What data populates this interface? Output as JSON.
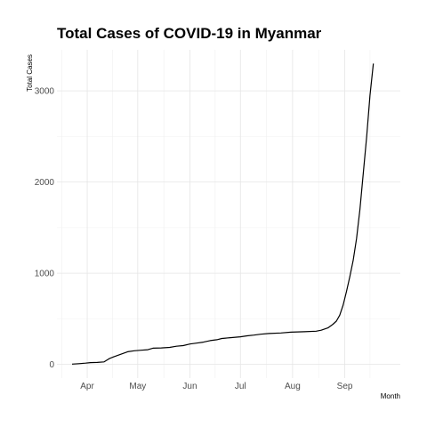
{
  "chart_data": {
    "type": "line",
    "title": "Total Cases of COVID-19 in Myanmar",
    "xlabel": "Month",
    "ylabel": "Total Cases",
    "x_ticks": [
      "Apr",
      "May",
      "Jun",
      "Jul",
      "Aug",
      "Sep"
    ],
    "y_ticks": [
      0,
      1000,
      2000,
      3000
    ],
    "xlim": [
      "2020-03-14",
      "2020-10-04"
    ],
    "ylim": [
      -150,
      3450
    ],
    "grid": true,
    "legend": "none",
    "series": [
      {
        "color": "#000000",
        "points": [
          [
            "2020-03-23",
            3
          ],
          [
            "2020-03-27",
            8
          ],
          [
            "2020-03-31",
            14
          ],
          [
            "2020-04-03",
            20
          ],
          [
            "2020-04-07",
            22
          ],
          [
            "2020-04-11",
            28
          ],
          [
            "2020-04-14",
            63
          ],
          [
            "2020-04-17",
            85
          ],
          [
            "2020-04-21",
            111
          ],
          [
            "2020-04-25",
            139
          ],
          [
            "2020-04-29",
            150
          ],
          [
            "2020-05-03",
            155
          ],
          [
            "2020-05-07",
            161
          ],
          [
            "2020-05-10",
            178
          ],
          [
            "2020-05-15",
            181
          ],
          [
            "2020-05-20",
            187
          ],
          [
            "2020-05-24",
            199
          ],
          [
            "2020-05-28",
            206
          ],
          [
            "2020-06-01",
            224
          ],
          [
            "2020-06-05",
            233
          ],
          [
            "2020-06-09",
            244
          ],
          [
            "2020-06-13",
            261
          ],
          [
            "2020-06-17",
            270
          ],
          [
            "2020-06-20",
            284
          ],
          [
            "2020-06-25",
            293
          ],
          [
            "2020-07-01",
            303
          ],
          [
            "2020-07-05",
            313
          ],
          [
            "2020-07-09",
            321
          ],
          [
            "2020-07-13",
            331
          ],
          [
            "2020-07-18",
            339
          ],
          [
            "2020-07-25",
            345
          ],
          [
            "2020-07-31",
            353
          ],
          [
            "2020-08-08",
            358
          ],
          [
            "2020-08-15",
            364
          ],
          [
            "2020-08-18",
            375
          ],
          [
            "2020-08-22",
            400
          ],
          [
            "2020-08-25",
            440
          ],
          [
            "2020-08-27",
            474
          ],
          [
            "2020-08-29",
            540
          ],
          [
            "2020-08-31",
            650
          ],
          [
            "2020-09-02",
            800
          ],
          [
            "2020-09-04",
            960
          ],
          [
            "2020-09-06",
            1140
          ],
          [
            "2020-09-08",
            1380
          ],
          [
            "2020-09-10",
            1700
          ],
          [
            "2020-09-12",
            2100
          ],
          [
            "2020-09-14",
            2500
          ],
          [
            "2020-09-16",
            2950
          ],
          [
            "2020-09-18",
            3300
          ]
        ]
      }
    ]
  }
}
